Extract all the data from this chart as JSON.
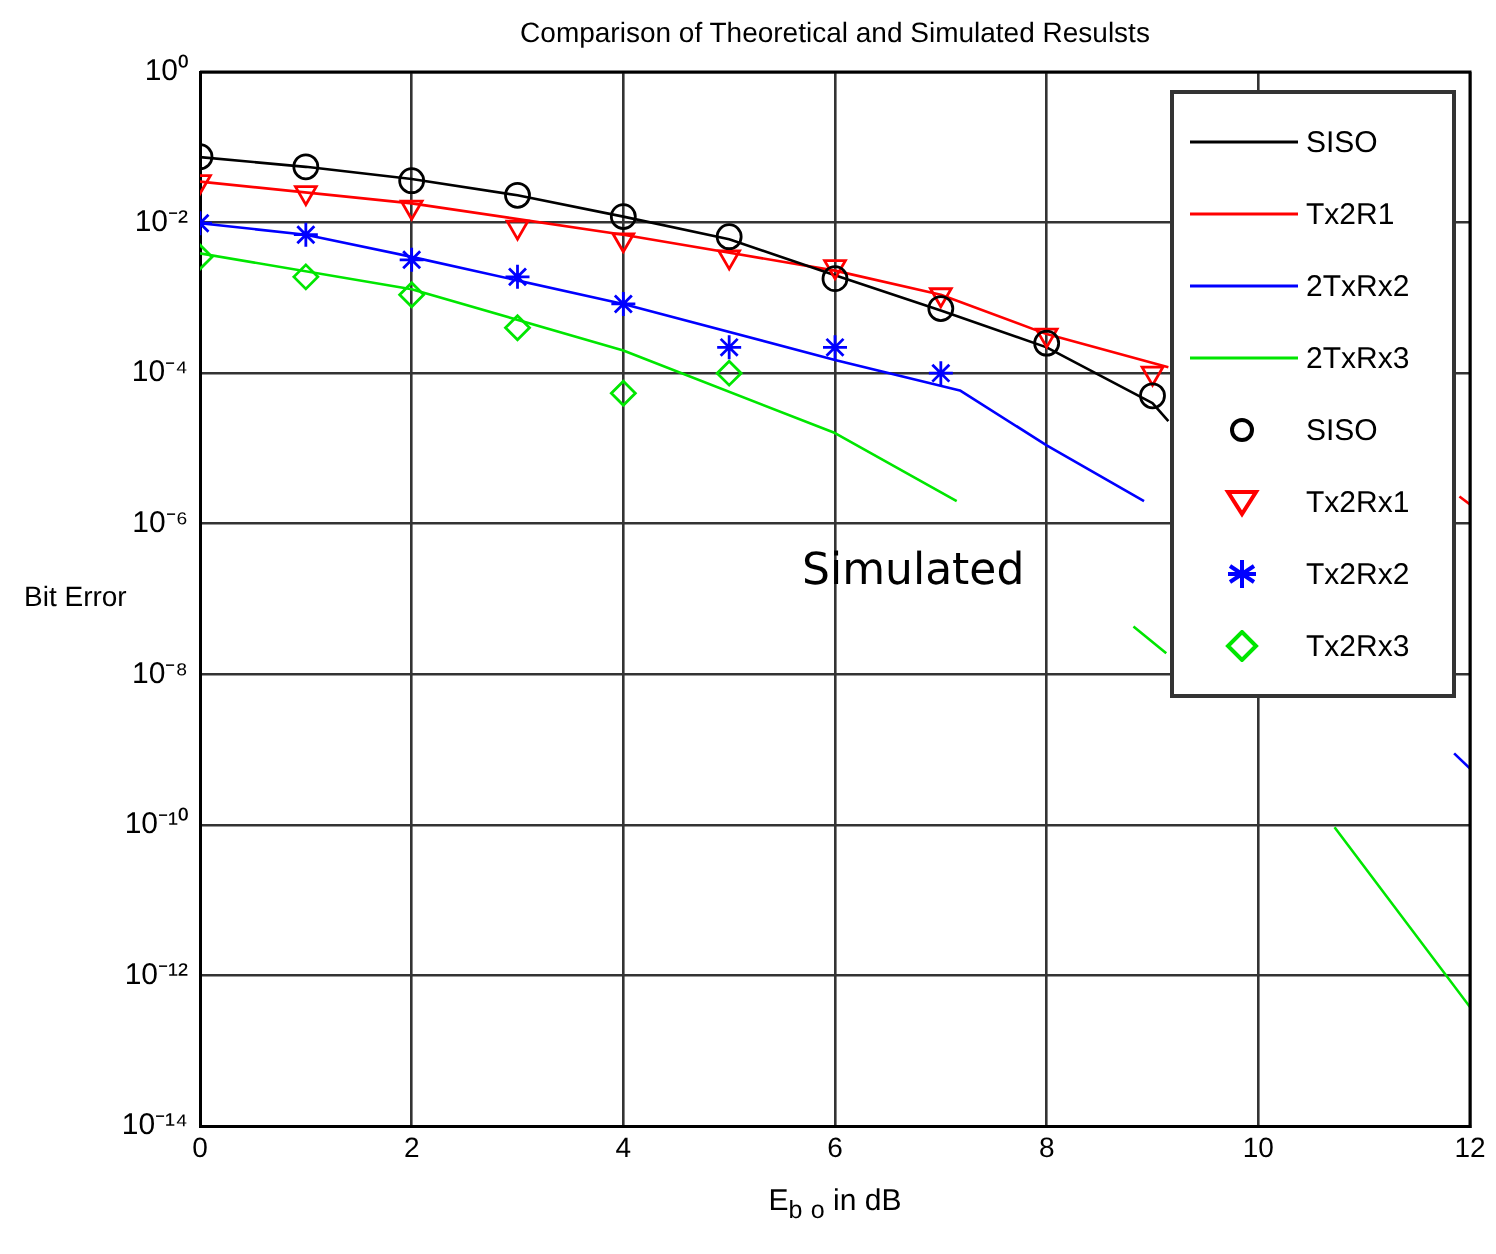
{
  "chart_data": {
    "type": "line",
    "title": "Comparison of Theoretical and Simulated Resulsts",
    "xlabel": "E$_{b}$  $_{o}$ in dB",
    "ylabel": "Bit Error",
    "xlim": [
      0,
      12
    ],
    "xticks": [
      0,
      2,
      4,
      6,
      8,
      10,
      12
    ],
    "ylim": [
      1e-14,
      1
    ],
    "yticks": [
      {
        "value": 1,
        "label": "10⁰"
      },
      {
        "value": 0.01,
        "label": "10⁻²"
      },
      {
        "value": 0.0001,
        "label": "10⁻⁴"
      },
      {
        "value": 1e-06,
        "label": "10⁻⁶"
      },
      {
        "value": 1e-08,
        "label": "10⁻⁸"
      },
      {
        "value": 1e-10,
        "label": "10⁻¹⁰"
      },
      {
        "value": 1e-12,
        "label": "10⁻¹²"
      },
      {
        "value": 1e-14,
        "label": "10⁻¹⁴"
      }
    ],
    "log": "y",
    "grid": true,
    "legend": "top right",
    "line_style": "solid",
    "annotations": [
      "Simulated"
    ],
    "series": [
      {
        "name": "SISO",
        "type": "line",
        "marker": "none",
        "color": "#000000",
        "x": [
          0,
          1,
          2,
          3,
          4,
          5,
          6,
          7,
          8,
          9,
          9.15
        ],
        "values": [
          0.074,
          0.055,
          0.038,
          0.023,
          0.012,
          0.006,
          0.002,
          0.00068,
          0.00022,
          4e-05,
          2.3e-05
        ]
      },
      {
        "name": "Tx2R1",
        "type": "line",
        "marker": "none",
        "color": "#ff0000",
        "x": [
          0,
          2,
          4,
          6,
          7,
          8,
          9.15,
          10,
          11,
          11.9,
          12
        ],
        "values": [
          0.035,
          0.018,
          0.0069,
          0.0023,
          0.0011,
          0.00033,
          0.00012,
          null,
          null,
          2.3e-06,
          1.8e-06
        ]
      },
      {
        "name": "2TxRx2",
        "type": "line",
        "marker": "none",
        "color": "#0000ff",
        "x": [
          0,
          1,
          2,
          4,
          6,
          7.18,
          8,
          8.92,
          10,
          11.85,
          12
        ],
        "values": [
          0.0098,
          0.0069,
          0.0035,
          0.00083,
          0.00015,
          5.9e-05,
          1.1e-05,
          2e-06,
          null,
          8.9e-10,
          5.6e-10
        ]
      },
      {
        "name": "2TxRx3",
        "type": "line",
        "marker": "none",
        "color": "#00e600",
        "x": [
          0,
          2,
          4,
          6,
          7.15,
          8,
          8.82,
          9.13,
          10,
          10.72,
          12
        ],
        "values": [
          0.0039,
          0.0013,
          0.0002,
          1.6e-05,
          2e-06,
          null,
          4.3e-08,
          1.9e-08,
          null,
          9.3e-11,
          3.8e-13
        ]
      },
      {
        "name": "SISO",
        "type": "scatter",
        "marker": "circle",
        "color": "#000000",
        "x": [
          0,
          1,
          2,
          3,
          4,
          5,
          6,
          7,
          8,
          9
        ],
        "values": [
          0.075,
          0.055,
          0.036,
          0.023,
          0.012,
          0.0065,
          0.0018,
          0.00072,
          0.00025,
          5e-05
        ]
      },
      {
        "name": "Tx2Rx1",
        "type": "scatter",
        "marker": "triangle",
        "color": "#ff0000",
        "x": [
          0,
          1,
          2,
          3,
          4,
          5,
          6,
          7,
          8,
          9
        ],
        "values": [
          0.035,
          0.025,
          0.016,
          0.0087,
          0.0059,
          0.0035,
          0.0026,
          0.0011,
          0.00032,
          0.0001
        ]
      },
      {
        "name": "Tx2Rx2",
        "type": "scatter",
        "marker": "cross",
        "color": "#0000ff",
        "x": [
          0,
          1,
          2,
          3,
          4,
          5,
          6,
          7
        ],
        "values": [
          0.0098,
          0.0069,
          0.0032,
          0.0019,
          0.00083,
          0.00022,
          0.00022,
          0.0001
        ]
      },
      {
        "name": "Tx2Rx3",
        "type": "scatter",
        "marker": "diamond",
        "color": "#00e600",
        "x": [
          0,
          1,
          2,
          3,
          4,
          5
        ],
        "values": [
          0.0035,
          0.0019,
          0.0011,
          0.0004,
          5.4e-05,
          0.0001
        ]
      }
    ]
  }
}
